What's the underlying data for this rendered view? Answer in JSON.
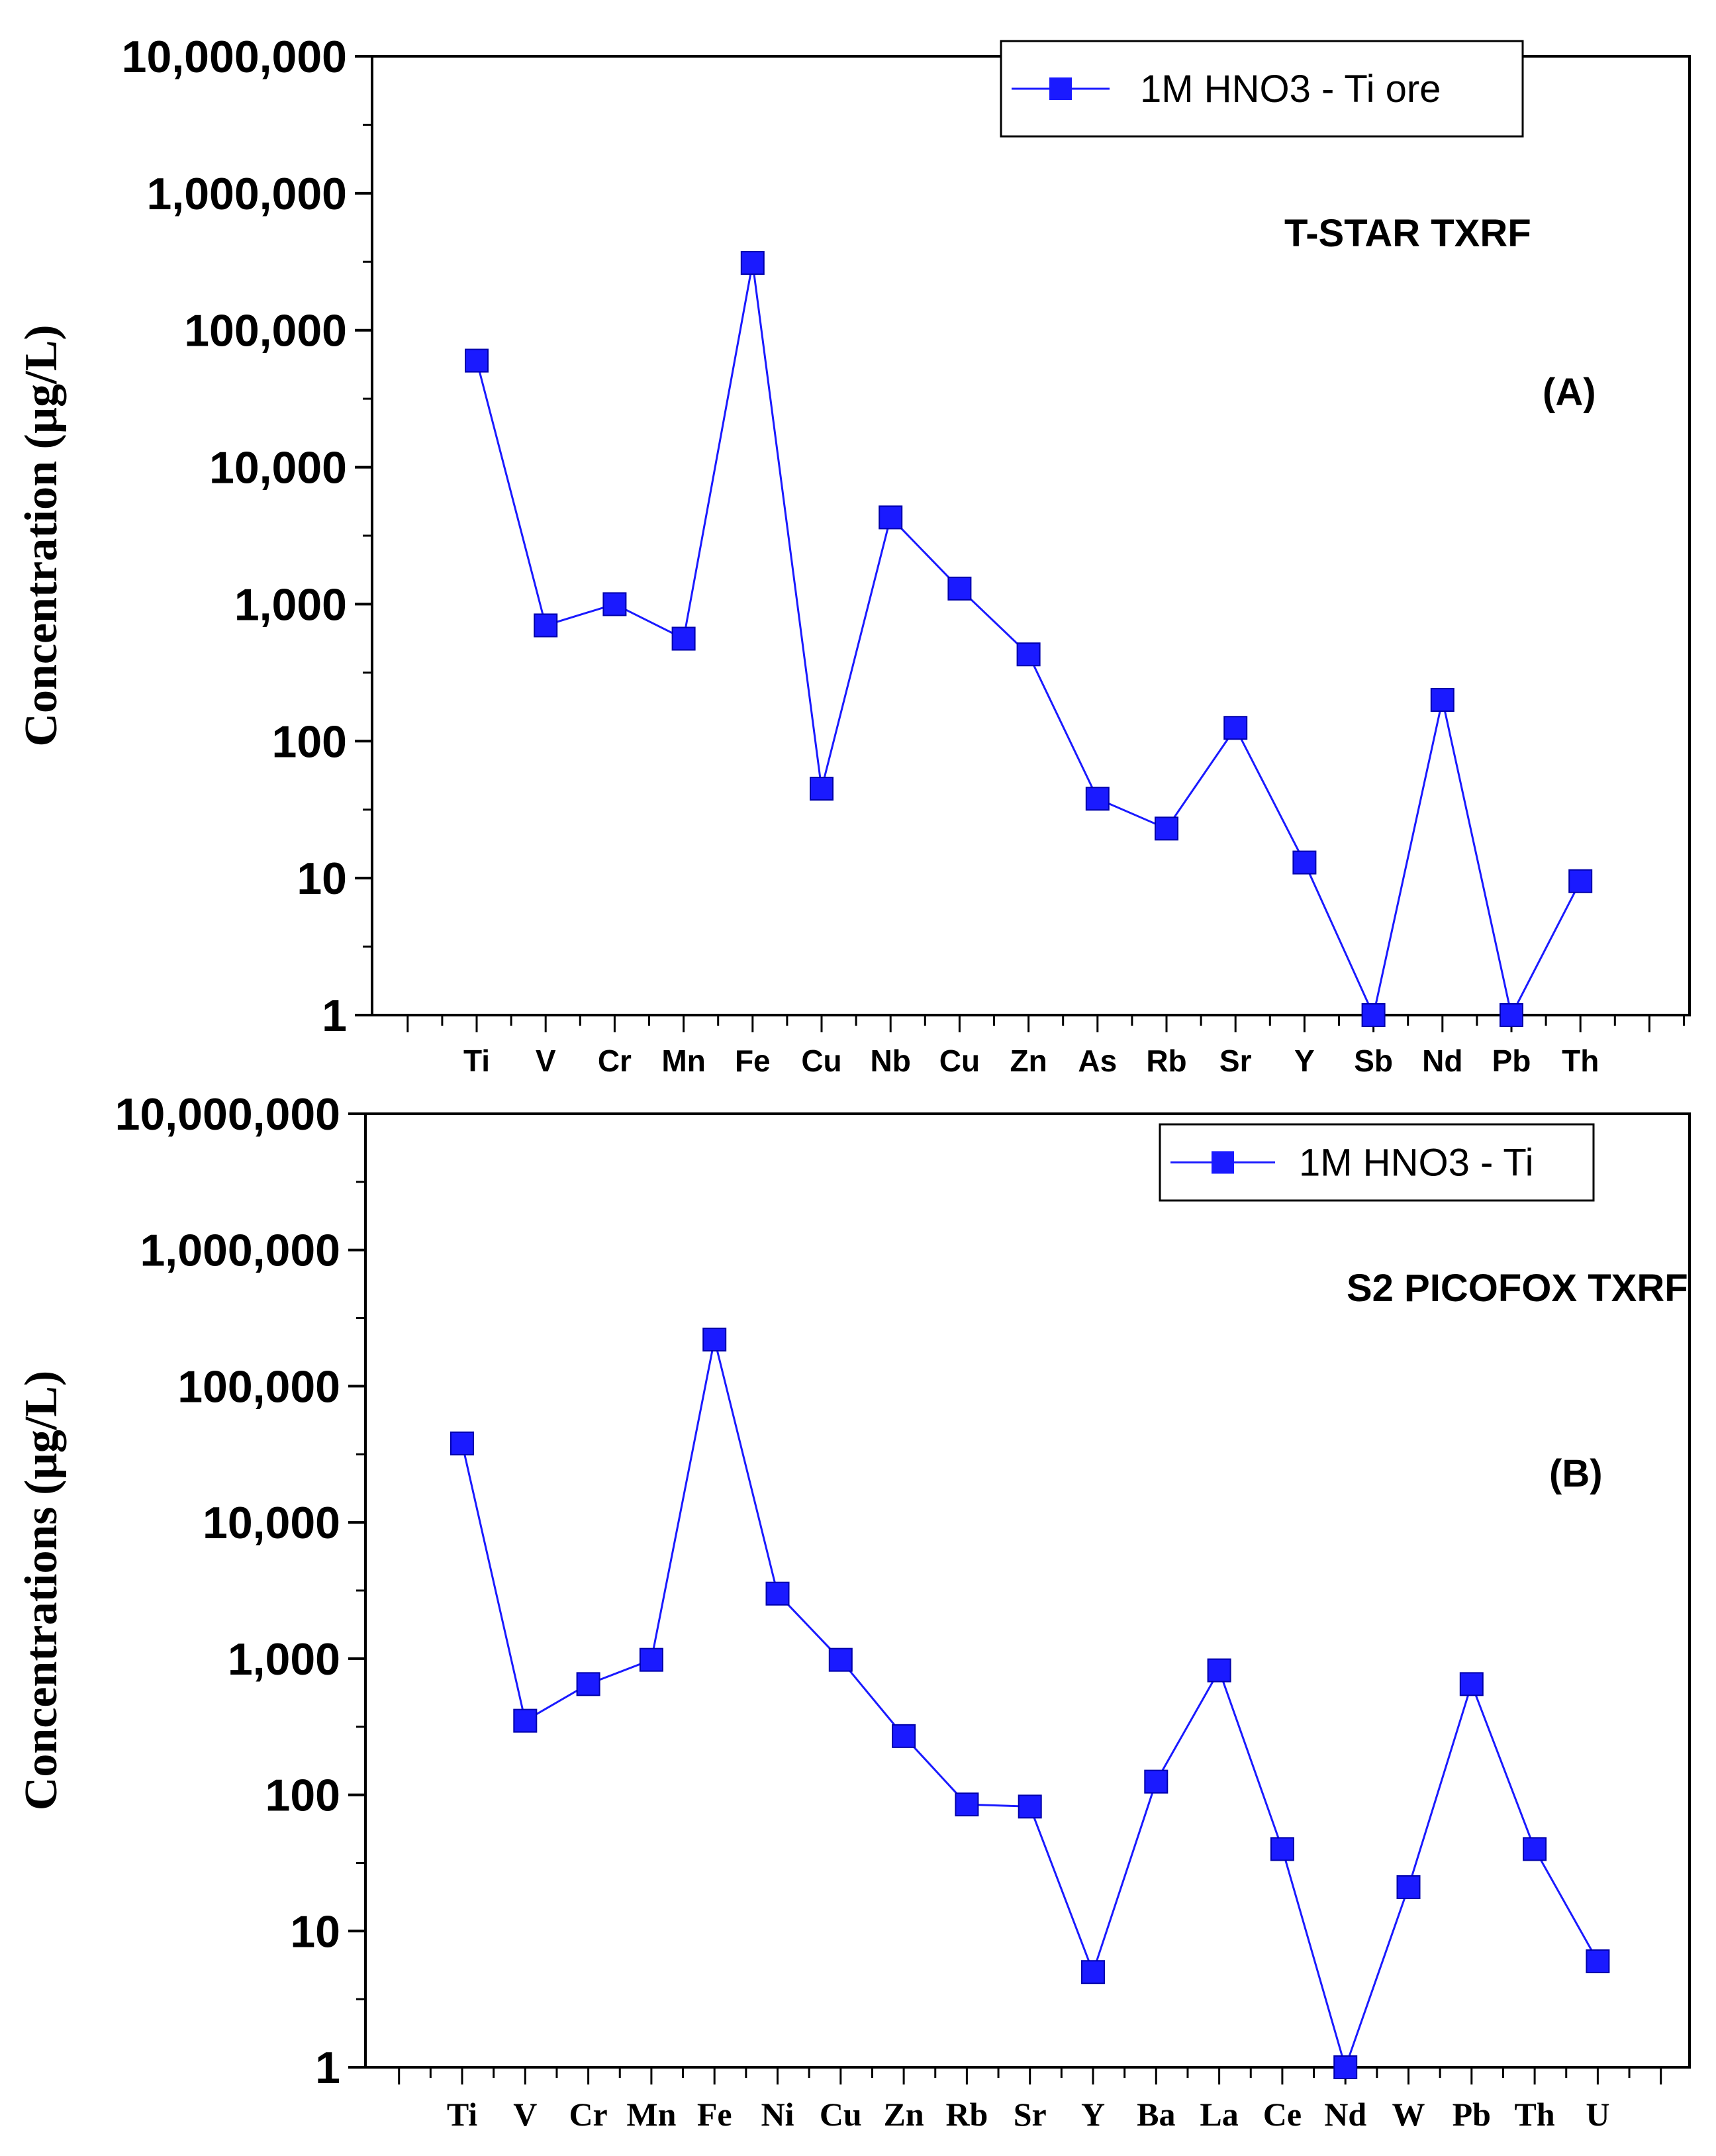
{
  "chart_data": [
    {
      "type": "line",
      "scale": "log",
      "ylabel": "Concentration (µg/L)",
      "ylim": [
        1,
        10000000
      ],
      "yticks": [
        "1",
        "10",
        "100",
        "1,000",
        "10,000",
        "100,000",
        "1,000,000",
        "10,000,000"
      ],
      "categories": [
        "Ti",
        "V",
        "Cr",
        "Mn",
        "Fe",
        "Cu",
        "Nb",
        "Cu",
        "Zn",
        "As",
        "Rb",
        "Sr",
        "Y",
        "Sb",
        "Nd",
        "Pb",
        "Th"
      ],
      "series": [
        {
          "name": "1M HNO3 - Ti ore",
          "values": [
            60000,
            700,
            1000,
            560,
            310000,
            45,
            4300,
            1300,
            430,
            38,
            23,
            125,
            13,
            1,
            200,
            1,
            9.5
          ]
        }
      ],
      "annotations": [
        "T-STAR TXRF",
        "(A)"
      ],
      "color": "#1a1aff"
    },
    {
      "type": "line",
      "scale": "log",
      "ylabel": "Concentrations (µg/L)",
      "ylim": [
        1,
        10000000
      ],
      "yticks": [
        "1",
        "10",
        "100",
        "1,000",
        "10,000",
        "100,000",
        "1,000,000",
        "10,000,000"
      ],
      "categories": [
        "Ti",
        "V",
        "Cr",
        "Mn",
        "Fe",
        "Ni",
        "Cu",
        "Zn",
        "Rb",
        "Sr",
        "Y",
        "Ba",
        "La",
        "Ce",
        "Nd",
        "W",
        "Pb",
        "Th",
        "U"
      ],
      "series": [
        {
          "name": "1M HNO3 - Ti",
          "values": [
            38000,
            350,
            650,
            980,
            220000,
            3000,
            980,
            270,
            85,
            82,
            5,
            125,
            820,
            40,
            1,
            21,
            650,
            40,
            6
          ]
        }
      ],
      "annotations": [
        "S2 PICOFOX TXRF",
        "(B)"
      ],
      "color": "#1a1aff"
    }
  ]
}
